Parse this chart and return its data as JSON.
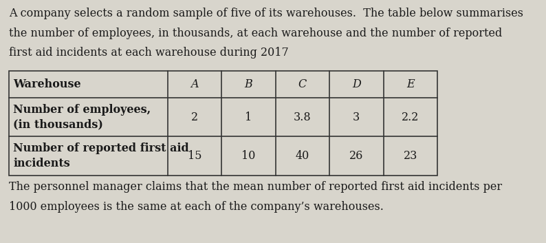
{
  "intro_text": "A company selects a random sample of five of its warehouses.  The table below summarises\nthe number of employees, in thousands, at each warehouse and the number of reported\nfirst aid incidents at each warehouse during 2017",
  "footer_text": "The personnel manager claims that the mean number of reported first aid incidents per\n1000 employees is the same at each of the company’s warehouses.",
  "col_headers": [
    "Warehouse",
    "A",
    "B",
    "C",
    "D",
    "E"
  ],
  "row1_label": "Number of employees,\n(in thousands)",
  "row1_values": [
    "2",
    "1",
    "3.8",
    "3",
    "2.2"
  ],
  "row2_label": "Number of reported first aid\nincidents",
  "row2_values": [
    "15",
    "10",
    "40",
    "26",
    "23"
  ],
  "bg_color": "#d8d5cc",
  "table_bg": "#d8d5cc",
  "text_color": "#1a1a1a",
  "intro_fontsize": 11.5,
  "footer_fontsize": 11.5,
  "header_fontsize": 11.5,
  "cell_fontsize": 11.5
}
